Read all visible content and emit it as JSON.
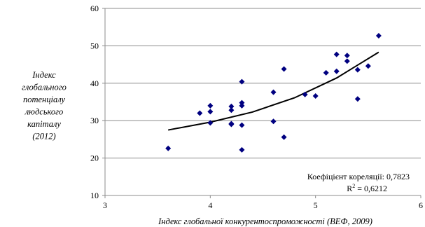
{
  "chart_data": {
    "type": "scatter",
    "xlabel": "Індекс глобальної конкурентоспроможності (ВЕФ, 2009)",
    "ylabel_lines": [
      "Індекс",
      "глобального",
      "потенціалу",
      "людського",
      "капіталу",
      "(2012)"
    ],
    "xlim": [
      3,
      6
    ],
    "ylim": [
      10,
      60
    ],
    "x_ticks": [
      "3",
      "4",
      "5",
      "6"
    ],
    "y_ticks": [
      "10",
      "20",
      "30",
      "40",
      "50",
      "60"
    ],
    "grid": "horizontal",
    "marker": "diamond",
    "marker_color": "#000080",
    "trend_color": "#000000",
    "points": [
      {
        "x": 3.6,
        "y": 22.6
      },
      {
        "x": 3.9,
        "y": 32.0
      },
      {
        "x": 4.0,
        "y": 34.0
      },
      {
        "x": 4.0,
        "y": 32.4
      },
      {
        "x": 4.0,
        "y": 29.4
      },
      {
        "x": 4.2,
        "y": 33.8
      },
      {
        "x": 4.2,
        "y": 32.8
      },
      {
        "x": 4.2,
        "y": 29.2
      },
      {
        "x": 4.2,
        "y": 29.0
      },
      {
        "x": 4.3,
        "y": 40.4
      },
      {
        "x": 4.3,
        "y": 34.8
      },
      {
        "x": 4.3,
        "y": 34.0
      },
      {
        "x": 4.3,
        "y": 28.8
      },
      {
        "x": 4.3,
        "y": 22.2
      },
      {
        "x": 4.6,
        "y": 37.6
      },
      {
        "x": 4.6,
        "y": 29.8
      },
      {
        "x": 4.7,
        "y": 43.8
      },
      {
        "x": 4.7,
        "y": 25.6
      },
      {
        "x": 4.9,
        "y": 37.0
      },
      {
        "x": 5.0,
        "y": 36.6
      },
      {
        "x": 5.1,
        "y": 42.8
      },
      {
        "x": 5.2,
        "y": 47.7
      },
      {
        "x": 5.2,
        "y": 43.2
      },
      {
        "x": 5.3,
        "y": 47.4
      },
      {
        "x": 5.3,
        "y": 45.9
      },
      {
        "x": 5.4,
        "y": 43.6
      },
      {
        "x": 5.4,
        "y": 35.8
      },
      {
        "x": 5.5,
        "y": 44.6
      },
      {
        "x": 5.6,
        "y": 52.7
      }
    ],
    "trendline": {
      "x": [
        3.6,
        4.0,
        4.4,
        4.8,
        5.2,
        5.6
      ],
      "y": [
        27.5,
        29.6,
        32.3,
        36.1,
        41.4,
        48.3
      ]
    },
    "annotations": {
      "correlation": "Коефіцієнт кореляції: 0,7823",
      "r2_base": "R",
      "r2_sup": "2",
      "r2_value": " = 0,6212"
    }
  }
}
